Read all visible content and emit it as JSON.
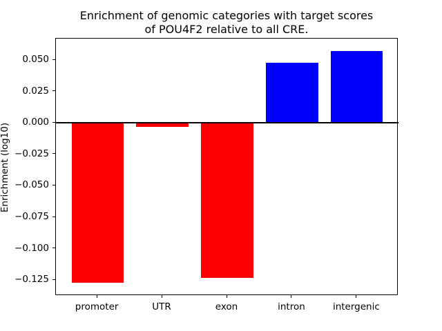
{
  "chart_data": {
    "type": "bar",
    "title": "Enrichment of genomic categories with target scores\nof POU4F2 relative to all CRE.",
    "xlabel": "",
    "ylabel": "Enrichment (log10)",
    "categories": [
      "promoter",
      "UTR",
      "exon",
      "intron",
      "intergenic"
    ],
    "values": [
      -0.127,
      -0.003,
      -0.123,
      0.048,
      0.057
    ],
    "bar_colors": [
      "#ff0000",
      "#ff0000",
      "#ff0000",
      "#0000ff",
      "#0000ff"
    ],
    "negative_color": "#ff0000",
    "positive_color": "#0000ff",
    "bar_width": 0.8,
    "xlim": [
      -0.64,
      4.64
    ],
    "ylim": [
      -0.1375,
      0.067
    ],
    "yticks": [
      0.05,
      0.025,
      0.0,
      -0.025,
      -0.05,
      -0.075,
      -0.1,
      -0.125
    ],
    "ytick_labels": [
      "0.050",
      "0.025",
      "0.000",
      "−0.025",
      "−0.050",
      "−0.075",
      "−0.100",
      "−0.125"
    ],
    "zero_line": true,
    "grid": false,
    "legend": null
  }
}
